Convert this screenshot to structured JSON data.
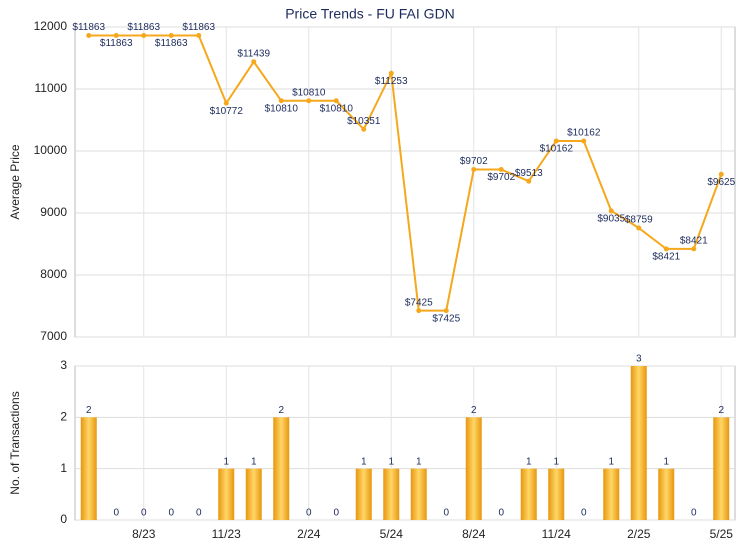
{
  "chart_data": [
    {
      "type": "line",
      "title": "Price Trends - FU FAI GDN",
      "y_label": "Average Price",
      "color": "#f5a81c",
      "values": [
        11863,
        11863,
        11863,
        11863,
        11863,
        10772,
        11439,
        10810,
        10810,
        10810,
        10351,
        11253,
        7425,
        7425,
        9702,
        9702,
        9513,
        10162,
        10162,
        9035,
        8759,
        8421,
        8421,
        9625
      ],
      "value_labels": [
        "$11863",
        "$11863",
        "$11863",
        "$11863",
        "$11863",
        "$10772",
        "$11439",
        "$10810",
        "$10810",
        "$10810",
        "$10351",
        "$11253",
        "$7425",
        "$7425",
        "$9702",
        "$9702",
        "$9513",
        "$10162",
        "$10162",
        "$9035",
        "$8759",
        "$8421",
        "$8421",
        "$9625"
      ],
      "ylim": [
        7000,
        12000
      ],
      "yticks": [
        7000,
        8000,
        9000,
        10000,
        11000,
        12000
      ],
      "grid": true
    },
    {
      "type": "bar",
      "y_label": "No. of Transactions",
      "color": "#f5a81c",
      "categories": [
        null,
        null,
        "8/23",
        null,
        null,
        "11/23",
        null,
        null,
        "2/24",
        null,
        null,
        "5/24",
        null,
        null,
        "8/24",
        null,
        null,
        "11/24",
        null,
        null,
        "2/25",
        null,
        null,
        "5/25"
      ],
      "values": [
        2,
        0,
        0,
        0,
        0,
        1,
        1,
        2,
        0,
        0,
        1,
        1,
        1,
        0,
        2,
        0,
        1,
        1,
        0,
        1,
        3,
        1,
        0,
        2
      ],
      "ylim": [
        0,
        3
      ],
      "yticks": [
        0,
        1,
        2,
        3
      ],
      "grid": true
    }
  ]
}
